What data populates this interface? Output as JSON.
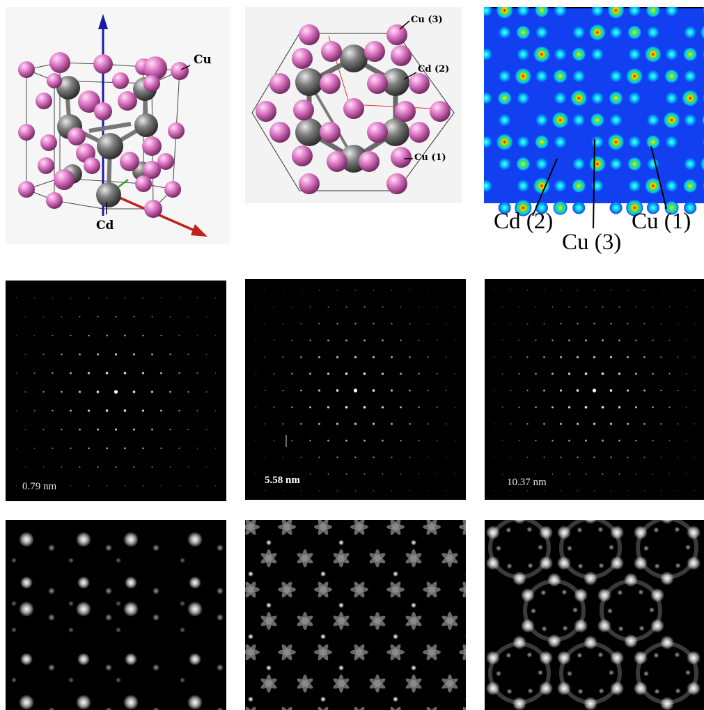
{
  "colors": {
    "cu_atom": "#e07ac8",
    "cd_atom": "#7c7c7c",
    "axis_z": "#1a1aa8",
    "axis_x": "#c0231a",
    "axis_y": "#22aa22",
    "map_background": "#1240f0",
    "pattern_background": "#000000"
  },
  "top_row": {
    "unit_cell": {
      "label_cu": "Cu",
      "label_cd": "Cd"
    },
    "projection": {
      "label_cu3": "Cu (3)",
      "label_cd2": "Cd (2)",
      "label_cu1": "Cu (1)"
    },
    "density_map": {
      "label_cd2": "Cd (2)",
      "label_cu3": "Cu (3)",
      "label_cu1": "Cu (1)"
    }
  },
  "middle_row": [
    {
      "label": "0.79 nm",
      "icon": "diffraction-pattern"
    },
    {
      "label": "5.58 nm",
      "icon": "diffraction-pattern"
    },
    {
      "label": "10.37 nm",
      "icon": "diffraction-pattern"
    }
  ],
  "bottom_row": [
    {
      "icon": "simulated-image-dots"
    },
    {
      "icon": "simulated-image-petals"
    },
    {
      "icon": "simulated-image-hexagonal"
    }
  ]
}
